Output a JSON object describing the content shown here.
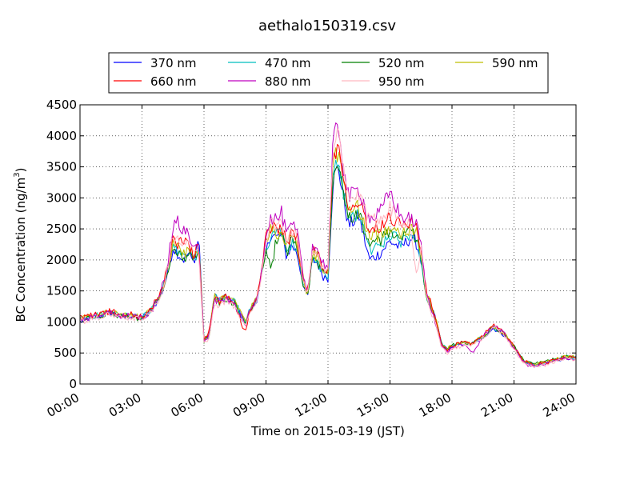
{
  "chart_data": {
    "type": "line",
    "title": "aethalo150319.csv",
    "xlabel": "Time on 2015-03-19 (JST)",
    "ylabel": "BC Concentration (ng/m",
    "ylabel_sup": "3",
    "ylabel_tail": ")",
    "xlim": [
      "00:00",
      "24:00"
    ],
    "ylim": [
      0,
      4500
    ],
    "x_ticks": [
      "00:00",
      "03:00",
      "06:00",
      "09:00",
      "12:00",
      "15:00",
      "18:00",
      "21:00",
      "24:00"
    ],
    "y_ticks": [
      0,
      500,
      1000,
      1500,
      2000,
      2500,
      3000,
      3500,
      4000,
      4500
    ],
    "grid": true,
    "legend_position": "top-center",
    "legend_columns": 4,
    "series_base_hours": [
      0.0,
      0.5,
      1.0,
      1.5,
      2.0,
      2.5,
      3.0,
      3.5,
      4.0,
      4.25,
      4.5,
      4.75,
      5.0,
      5.25,
      5.5,
      5.75,
      6.0,
      6.25,
      6.5,
      6.75,
      7.0,
      7.5,
      8.0,
      8.25,
      8.5,
      8.75,
      9.0,
      9.25,
      9.5,
      9.75,
      10.0,
      10.25,
      10.5,
      10.75,
      11.0,
      11.25,
      11.5,
      11.75,
      12.0,
      12.25,
      12.5,
      12.75,
      13.0,
      13.5,
      14.0,
      14.5,
      15.0,
      15.5,
      16.0,
      16.25,
      16.5,
      16.75,
      17.0,
      17.25,
      17.5,
      17.75,
      18.0,
      18.5,
      19.0,
      19.5,
      20.0,
      20.5,
      21.0,
      21.5,
      22.0,
      22.5,
      23.0,
      23.5,
      24.0
    ],
    "series": [
      {
        "name": "370 nm",
        "color": "#0000ff",
        "values": [
          1000,
          1050,
          1100,
          1150,
          1080,
          1100,
          1050,
          1200,
          1500,
          1800,
          2200,
          2100,
          2000,
          2100,
          1950,
          2400,
          700,
          800,
          1450,
          1350,
          1400,
          1300,
          950,
          1200,
          1300,
          1650,
          2100,
          2450,
          2350,
          2400,
          2050,
          2250,
          2100,
          1700,
          1350,
          2000,
          1950,
          1750,
          1700,
          3300,
          3500,
          3000,
          2550,
          2700,
          2000,
          2100,
          2300,
          2200,
          2350,
          2300,
          2000,
          1400,
          1250,
          1000,
          650,
          550,
          600,
          650,
          650,
          750,
          900,
          800,
          600,
          350,
          300,
          330,
          380,
          420,
          420
        ]
      },
      {
        "name": "470 nm",
        "color": "#00bfbf",
        "values": [
          1050,
          1080,
          1120,
          1150,
          1090,
          1100,
          1060,
          1210,
          1520,
          1850,
          2200,
          2120,
          2050,
          2120,
          1980,
          2200,
          720,
          820,
          1420,
          1330,
          1400,
          1320,
          980,
          1220,
          1320,
          1700,
          2150,
          2450,
          2400,
          2450,
          2100,
          2300,
          2150,
          1720,
          1380,
          2020,
          1980,
          1780,
          1750,
          3400,
          3550,
          3080,
          2650,
          2780,
          2150,
          2230,
          2400,
          2300,
          2420,
          2350,
          2050,
          1430,
          1250,
          1000,
          650,
          550,
          610,
          660,
          650,
          760,
          910,
          810,
          600,
          350,
          310,
          340,
          390,
          430,
          420
        ]
      },
      {
        "name": "520 nm",
        "color": "#007f00",
        "values": [
          1040,
          1070,
          1110,
          1140,
          1080,
          1090,
          1050,
          1200,
          1510,
          1840,
          2210,
          2100,
          2030,
          2100,
          1960,
          2150,
          680,
          760,
          1400,
          1310,
          1380,
          1300,
          960,
          1210,
          1310,
          1700,
          2200,
          1780,
          2350,
          2450,
          2100,
          2350,
          2200,
          1700,
          1380,
          2050,
          1980,
          1800,
          1780,
          3450,
          3600,
          3150,
          2700,
          2750,
          2250,
          2300,
          2450,
          2350,
          2450,
          2380,
          2050,
          1420,
          1230,
          980,
          630,
          560,
          620,
          670,
          660,
          770,
          910,
          810,
          610,
          360,
          320,
          350,
          400,
          440,
          430
        ]
      },
      {
        "name": "590 nm",
        "color": "#bfbf00",
        "values": [
          1060,
          1090,
          1130,
          1160,
          1100,
          1110,
          1070,
          1220,
          1540,
          1880,
          2280,
          2180,
          2100,
          2180,
          2040,
          2200,
          700,
          800,
          1420,
          1350,
          1410,
          1330,
          990,
          1230,
          1340,
          1720,
          2300,
          2500,
          2420,
          2500,
          2200,
          2400,
          2270,
          1780,
          1420,
          2100,
          2050,
          1850,
          1820,
          3600,
          3750,
          3250,
          2800,
          2850,
          2350,
          2400,
          2550,
          2450,
          2500,
          2450,
          2120,
          1460,
          1260,
          1000,
          630,
          560,
          620,
          680,
          660,
          780,
          930,
          820,
          610,
          360,
          320,
          350,
          400,
          440,
          430
        ]
      },
      {
        "name": "660 nm",
        "color": "#ff0000",
        "values": [
          1070,
          1100,
          1140,
          1170,
          1110,
          1120,
          1080,
          1230,
          1560,
          1900,
          2350,
          2250,
          2300,
          2250,
          2100,
          2200,
          720,
          830,
          1400,
          1330,
          1400,
          1300,
          800,
          1220,
          1330,
          1720,
          2350,
          2550,
          2500,
          2550,
          2250,
          2450,
          2350,
          1800,
          1450,
          2150,
          2100,
          1900,
          1850,
          3700,
          3850,
          3350,
          2900,
          2950,
          2500,
          2550,
          2700,
          2600,
          2600,
          2550,
          2200,
          1480,
          1280,
          1000,
          620,
          550,
          610,
          670,
          650,
          780,
          940,
          830,
          610,
          360,
          310,
          340,
          390,
          430,
          420
        ]
      },
      {
        "name": "880 nm",
        "color": "#bf00bf",
        "values": [
          1030,
          1060,
          1120,
          1150,
          1090,
          1100,
          1060,
          1200,
          1580,
          1950,
          2550,
          2600,
          2500,
          2400,
          2250,
          2150,
          680,
          780,
          1350,
          1300,
          1380,
          1280,
          950,
          1200,
          1320,
          1720,
          2450,
          2700,
          2650,
          2750,
          2400,
          2550,
          2450,
          1850,
          1450,
          2250,
          2150,
          1950,
          1900,
          3900,
          4200,
          3500,
          3000,
          3150,
          2650,
          2750,
          3100,
          2700,
          2650,
          2600,
          2250,
          1450,
          1200,
          950,
          600,
          520,
          580,
          640,
          500,
          760,
          950,
          820,
          580,
          330,
          280,
          320,
          370,
          420,
          400
        ]
      },
      {
        "name": "950 nm",
        "color": "#ffb6c1",
        "values": [
          1000,
          1030,
          1090,
          1120,
          1060,
          1070,
          1030,
          1170,
          1530,
          1900,
          2400,
          2350,
          2300,
          2250,
          2100,
          2100,
          640,
          750,
          1300,
          1260,
          1340,
          1240,
          920,
          1170,
          1290,
          1680,
          2300,
          2600,
          2550,
          2650,
          2300,
          2450,
          2350,
          1780,
          1400,
          2200,
          2100,
          1900,
          1850,
          3800,
          4000,
          3450,
          2950,
          3050,
          2600,
          2700,
          2850,
          2650,
          2600,
          1700,
          2200,
          1400,
          1150,
          920,
          580,
          500,
          560,
          620,
          620,
          740,
          920,
          800,
          560,
          320,
          270,
          310,
          360,
          410,
          390
        ]
      }
    ]
  }
}
